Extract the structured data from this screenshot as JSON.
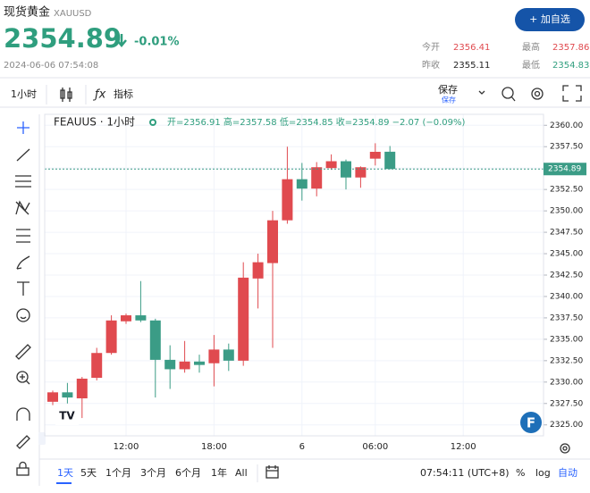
{
  "header": {
    "title": "现货黄金",
    "symbol": "XAUUSD",
    "price": "2354.89",
    "change": "-0.01%",
    "datetime": "2024-06-06 07:54:08",
    "button": "+ 加自选",
    "stats": [
      {
        "label": "今开",
        "value": "2356.41"
      },
      {
        "label": "最高",
        "value": "2357.86"
      },
      {
        "label": "昨收",
        "value": "2355.11"
      },
      {
        "label": "最低",
        "value": "2354.83"
      }
    ]
  },
  "toolbar": {
    "interval": "1小时",
    "indicators": "指标",
    "save": "保存",
    "save_sub": "保存"
  },
  "legend": {
    "symbol": "FEAUUS · 1小时",
    "ohlc": "开=2356.91 高=2357.58 低=2354.85 收=2354.89 −2.07 (−0.09%)"
  },
  "footer": {
    "ranges": [
      "1天",
      "5天",
      "1个月",
      "3个月",
      "6个月",
      "1年",
      "All"
    ],
    "time": "07:54:11 (UTC+8)",
    "percent": "%",
    "log": "log",
    "auto": "自动"
  },
  "chart_data": {
    "type": "candlestick",
    "up_color": "#e04a4f",
    "down_color": "#3b9c86",
    "categories": [
      null,
      null,
      null,
      null,
      null,
      null,
      null,
      null,
      null,
      null,
      null,
      null,
      null,
      null,
      null,
      null,
      null,
      null,
      null,
      null,
      null,
      null,
      null,
      null
    ],
    "series": {
      "open": [
        2327.7,
        2328.8,
        2328.1,
        2330.5,
        2333.4,
        2337.1,
        2337.8,
        2337.2,
        2332.6,
        2331.5,
        2332.4,
        2332.2,
        2333.8,
        2332.5,
        2342.1,
        2343.9,
        2348.9,
        2353.7,
        2352.6,
        2355.0,
        2355.8,
        2353.9,
        2356.1,
        2356.91
      ],
      "high": [
        2329.0,
        2329.9,
        2330.6,
        2334.0,
        2337.8,
        2338.0,
        2341.8,
        2337.4,
        2334.3,
        2334.8,
        2333.2,
        2335.5,
        2334.5,
        2344.0,
        2345.0,
        2350.0,
        2357.5,
        2355.6,
        2355.7,
        2356.6,
        2356.0,
        2355.2,
        2357.9,
        2357.58
      ],
      "low": [
        2327.3,
        2327.5,
        2325.8,
        2330.2,
        2333.2,
        2336.8,
        2337.0,
        2328.2,
        2329.2,
        2331.1,
        2331.1,
        2329.5,
        2331.3,
        2331.9,
        2338.6,
        2334.0,
        2348.5,
        2351.2,
        2351.7,
        2354.8,
        2352.5,
        2352.7,
        2355.3,
        2354.85
      ],
      "close": [
        2328.8,
        2328.2,
        2330.4,
        2333.4,
        2337.2,
        2337.8,
        2337.2,
        2332.6,
        2331.5,
        2332.4,
        2332.0,
        2333.8,
        2332.5,
        2342.2,
        2344.0,
        2348.9,
        2353.7,
        2352.6,
        2355.1,
        2355.8,
        2353.9,
        2355.1,
        2356.9,
        2354.89
      ]
    },
    "ylim": [
      2323.72,
      2361.28
    ],
    "yticks": [
      {
        "value": 2325,
        "label": "2325.00"
      },
      {
        "value": 2327.5,
        "label": "2327.50"
      },
      {
        "value": 2330,
        "label": "2330.00"
      },
      {
        "value": 2332.5,
        "label": "2332.50"
      },
      {
        "value": 2335,
        "label": "2335.00"
      },
      {
        "value": 2337.5,
        "label": "2337.50"
      },
      {
        "value": 2340,
        "label": "2340.00"
      },
      {
        "value": 2342.5,
        "label": "2342.50"
      },
      {
        "value": 2345,
        "label": "2345.00"
      },
      {
        "value": 2347.5,
        "label": "2347.50"
      },
      {
        "value": 2350,
        "label": "2350.00"
      },
      {
        "value": 2352.5,
        "label": "2352.50"
      },
      {
        "value": 2355,
        "label": "2355.00"
      },
      {
        "value": 2357.5,
        "label": "2357.50"
      },
      {
        "value": 2360,
        "label": "2360.00"
      }
    ],
    "xticks": [
      {
        "value": 5,
        "label": "12:00"
      },
      {
        "value": 11,
        "label": "18:00"
      },
      {
        "value": 17,
        "label": "6"
      },
      {
        "value": 22,
        "label": "06:00"
      },
      {
        "value": 28,
        "label": "12:00"
      }
    ],
    "grid": true
  }
}
